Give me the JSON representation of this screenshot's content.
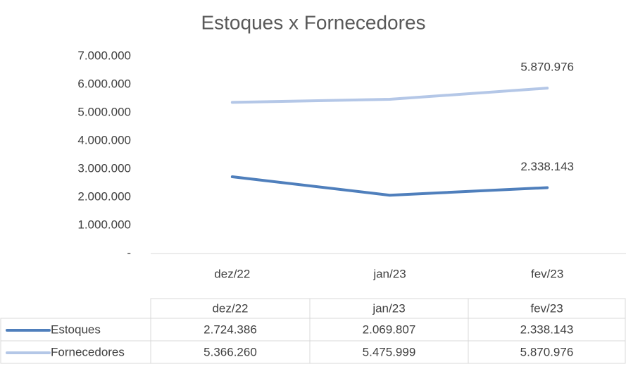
{
  "chart_data": {
    "type": "line",
    "title": "Estoques x Fornecedores",
    "categories": [
      "dez/22",
      "jan/23",
      "fev/23"
    ],
    "series": [
      {
        "name": "Estoques",
        "color": "#4f7fbc",
        "values": [
          2724386,
          2069807,
          2338143
        ],
        "value_labels": [
          "2.724.386",
          "2.069.807",
          "2.338.143"
        ]
      },
      {
        "name": "Fornecedores",
        "color": "#b4c7e7",
        "values": [
          5366260,
          5475999,
          5870976
        ],
        "value_labels": [
          "5.366.260",
          "5.475.999",
          "5.870.976"
        ]
      }
    ],
    "ylim": [
      0,
      7000000
    ],
    "yticks": [
      {
        "value": 0,
        "label": "-"
      },
      {
        "value": 1000000,
        "label": "1.000.000"
      },
      {
        "value": 2000000,
        "label": "2.000.000"
      },
      {
        "value": 3000000,
        "label": "3.000.000"
      },
      {
        "value": 4000000,
        "label": "4.000.000"
      },
      {
        "value": 5000000,
        "label": "5.000.000"
      },
      {
        "value": 6000000,
        "label": "6.000.000"
      },
      {
        "value": 7000000,
        "label": "7.000.000"
      }
    ],
    "grid": false,
    "data_labels": "last",
    "data_table": true
  }
}
